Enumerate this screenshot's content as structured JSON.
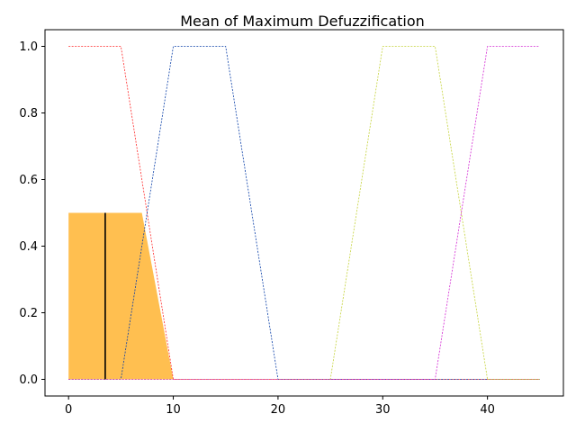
{
  "chart_data": {
    "type": "line",
    "title": "Mean of Maximum Defuzzification",
    "xlabel": "",
    "ylabel": "",
    "xlim": [
      -2.25,
      47.25
    ],
    "ylim": [
      -0.05,
      1.05
    ],
    "x_ticks": [
      0,
      10,
      20,
      30,
      40
    ],
    "x_tick_labels": [
      "0",
      "10",
      "20",
      "30",
      "40"
    ],
    "y_ticks": [
      0.0,
      0.2,
      0.4,
      0.6,
      0.8,
      1.0
    ],
    "y_tick_labels": [
      "0.0",
      "0.2",
      "0.4",
      "0.6",
      "0.8",
      "1.0"
    ],
    "grid": false,
    "legend": "none",
    "series": [
      {
        "color": "#ff2a2a",
        "x": [
          0,
          5,
          10,
          45
        ],
        "y": [
          1,
          1,
          0,
          0
        ]
      },
      {
        "color": "#0a3fa8",
        "x": [
          0,
          5,
          10,
          15,
          20,
          45
        ],
        "y": [
          0,
          0,
          1,
          1,
          0,
          0
        ]
      },
      {
        "color": "#c5d33a",
        "x": [
          0,
          25,
          30,
          35,
          40,
          45
        ],
        "y": [
          0,
          0,
          1,
          1,
          0,
          0
        ]
      },
      {
        "color": "#d42ad4",
        "x": [
          0,
          35,
          40,
          45
        ],
        "y": [
          0,
          0,
          1,
          1
        ]
      }
    ],
    "filled_area": {
      "color": "#ffbf50",
      "x": [
        0,
        7,
        10,
        10,
        0
      ],
      "y": [
        0.5,
        0.5,
        0,
        0,
        0
      ]
    },
    "defuzzified_line": {
      "x": 3.5,
      "y": [
        0,
        0.5
      ],
      "color": "#000000"
    }
  }
}
